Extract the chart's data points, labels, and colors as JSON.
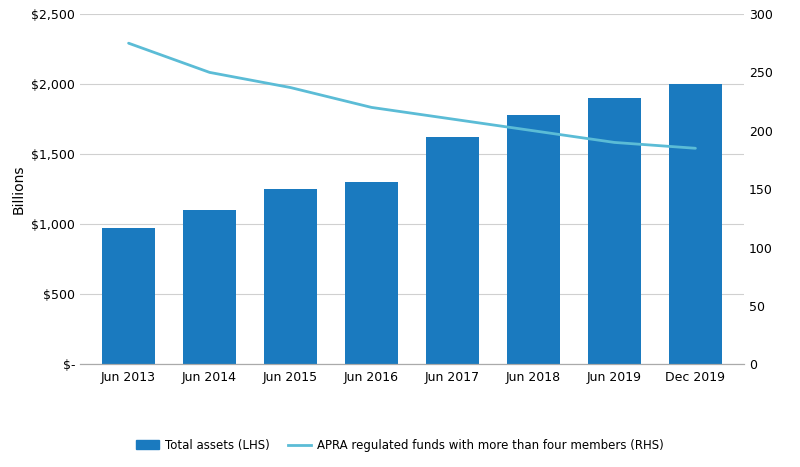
{
  "categories": [
    "Jun 2013",
    "Jun 2014",
    "Jun 2015",
    "Jun 2016",
    "Jun 2017",
    "Jun 2018",
    "Jun 2019",
    "Dec 2019"
  ],
  "bar_values": [
    975,
    1100,
    1250,
    1300,
    1620,
    1780,
    1900,
    2000
  ],
  "line_values": [
    275,
    250,
    237,
    220,
    210,
    200,
    190,
    185
  ],
  "bar_color": "#1a7abf",
  "line_color": "#5bbcd6",
  "ylabel_left": "Billions",
  "ylim_left": [
    0,
    2500
  ],
  "ylim_right": [
    0,
    300
  ],
  "yticks_left": [
    0,
    500,
    1000,
    1500,
    2000,
    2500
  ],
  "ytick_labels_left": [
    "$-",
    "$500",
    "$1,000",
    "$1,500",
    "$2,000",
    "$2,500"
  ],
  "yticks_right": [
    0,
    50,
    100,
    150,
    200,
    250,
    300
  ],
  "legend_bar_label": "Total assets (LHS)",
  "legend_line_label": "APRA regulated funds with more than four members (RHS)",
  "background_color": "#ffffff",
  "grid_color": "#d0d0d0",
  "bar_width": 0.65,
  "font_family": "sans-serif"
}
